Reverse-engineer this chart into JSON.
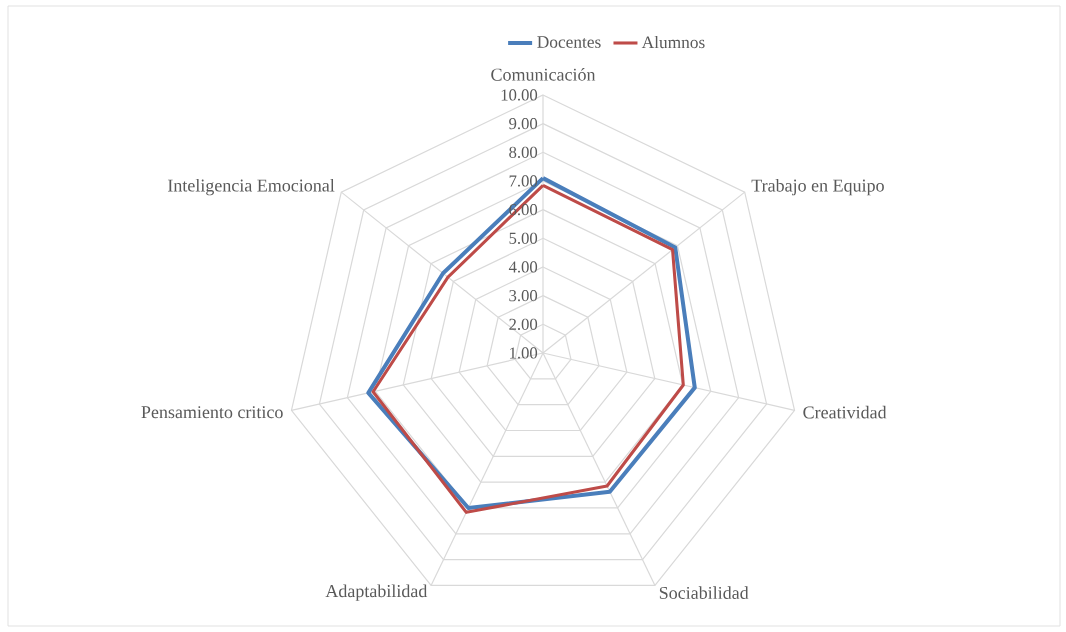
{
  "chart_data": {
    "type": "radar",
    "categories": [
      "Comunicación",
      "Trabajo en Equipo",
      "Creatividad",
      "Sociabilidad",
      "Adaptabilidad",
      "Pensamiento critico",
      "Inteligencia Emocional"
    ],
    "series": [
      {
        "name": "Docentes",
        "color": "#4a7ebb",
        "values": [
          7.1,
          6.9,
          6.43,
          6.37,
          7.0,
          7.25,
          5.46
        ]
      },
      {
        "name": "Alumnos",
        "color": "#be4b48",
        "values": [
          6.85,
          6.78,
          6.02,
          6.15,
          7.17,
          7.08,
          5.24
        ]
      }
    ],
    "ylim": [
      1,
      10
    ],
    "yticks": [
      {
        "value": 1,
        "label": "1.00"
      },
      {
        "value": 2,
        "label": "2.00"
      },
      {
        "value": 3,
        "label": "3.00"
      },
      {
        "value": 4,
        "label": "4.00"
      },
      {
        "value": 5,
        "label": "5.00"
      },
      {
        "value": 6,
        "label": "6.00"
      },
      {
        "value": 7,
        "label": "7.00"
      },
      {
        "value": 8,
        "label": "8.00"
      },
      {
        "value": 9,
        "label": "9.00"
      },
      {
        "value": 10,
        "label": "10.00"
      }
    ],
    "grid": true,
    "legend": "top",
    "marker": "none",
    "line_style": "solid"
  }
}
